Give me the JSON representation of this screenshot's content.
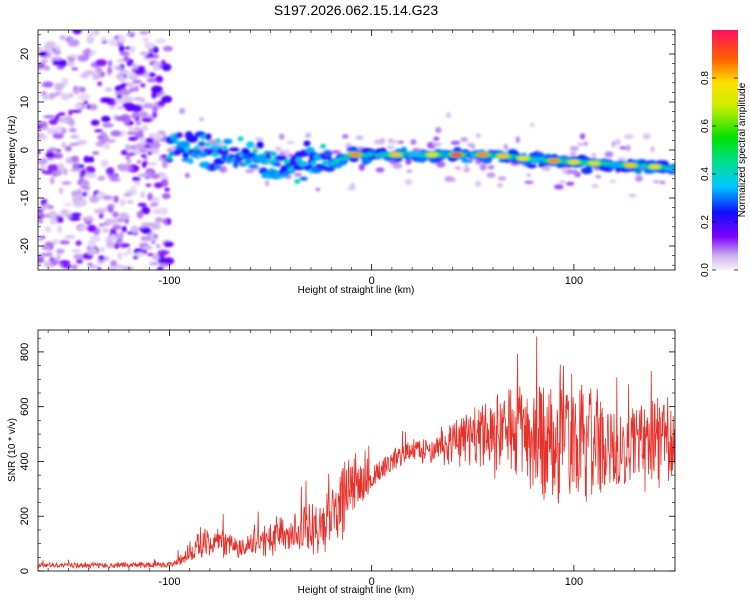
{
  "title": "S197.2026.062.15.14.G23",
  "chart_data": [
    {
      "type": "heatmap",
      "panel": "top",
      "xlabel": "Height of straight line (km)",
      "ylabel": "Frequency (Hz)",
      "xlim": [
        -165,
        150
      ],
      "ylim": [
        -25,
        25
      ],
      "xticks": [
        -100,
        0,
        100
      ],
      "yticks": [
        -20,
        -10,
        0,
        10,
        20
      ],
      "colorbar": {
        "label": "Normalized spectral amplitude",
        "range": [
          0,
          1
        ],
        "ticks": [
          "0.0",
          "0.2",
          "0.4",
          "0.6",
          "0.8"
        ],
        "tick_values": [
          0.0,
          0.2,
          0.4,
          0.6,
          0.8
        ]
      },
      "ridge": {
        "description_points_x": [
          -100,
          -80,
          -60,
          -40,
          -20,
          -10,
          0,
          20,
          40,
          60,
          80,
          100,
          120,
          140,
          150
        ],
        "description_points_freq": [
          0.5,
          0,
          -1.5,
          -4,
          -3,
          -1,
          -1,
          -1,
          -1,
          -1,
          -2,
          -2.5,
          -3,
          -3.5,
          -4
        ],
        "peak_amplitude_x": [
          -8,
          12,
          30,
          42,
          55,
          65,
          75,
          90,
          100,
          110,
          128,
          140
        ],
        "peak_amplitude_values": [
          0.85,
          0.8,
          0.75,
          0.95,
          0.85,
          0.8,
          0.75,
          0.85,
          0.75,
          0.7,
          0.8,
          0.75
        ]
      },
      "noise_region_x": [
        -165,
        -100
      ]
    },
    {
      "type": "line",
      "panel": "bottom",
      "xlabel": "Height of straight line (km)",
      "ylabel": "SNR (10 * v/v)",
      "xlim": [
        -165,
        150
      ],
      "ylim": [
        0,
        880
      ],
      "xticks": [
        -100,
        0,
        100
      ],
      "yticks": [
        0,
        200,
        400,
        600,
        800
      ],
      "color": "#e8302a",
      "envelope": {
        "x": [
          -165,
          -130,
          -100,
          -95,
          -85,
          -75,
          -65,
          -55,
          -45,
          -35,
          -25,
          -15,
          -8,
          0,
          10,
          20,
          30,
          40,
          50,
          60,
          70,
          80,
          90,
          100,
          110,
          120,
          130,
          140,
          150
        ],
        "mean": [
          22,
          20,
          22,
          40,
          100,
          110,
          80,
          110,
          140,
          150,
          150,
          260,
          330,
          340,
          400,
          440,
          450,
          470,
          490,
          500,
          500,
          490,
          480,
          470,
          460,
          450,
          460,
          470,
          470
        ],
        "spread": [
          8,
          10,
          10,
          20,
          50,
          50,
          30,
          50,
          70,
          80,
          110,
          130,
          90,
          50,
          40,
          40,
          50,
          70,
          100,
          130,
          160,
          190,
          220,
          240,
          200,
          150,
          130,
          150,
          120
        ]
      }
    }
  ]
}
